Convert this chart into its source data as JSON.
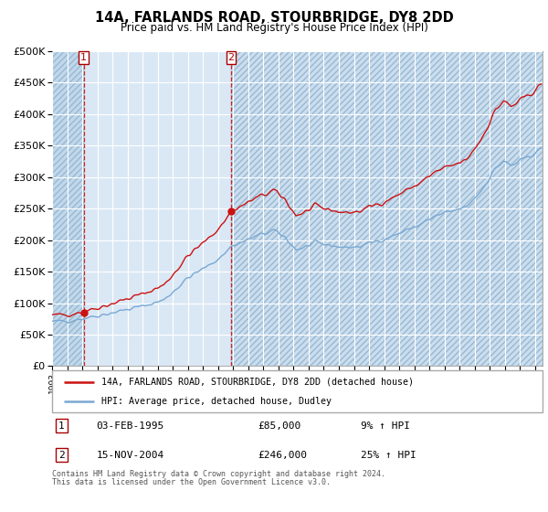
{
  "title": "14A, FARLANDS ROAD, STOURBRIDGE, DY8 2DD",
  "subtitle": "Price paid vs. HM Land Registry's House Price Index (HPI)",
  "sale1_date": "03-FEB-1995",
  "sale1_price": 85000,
  "sale1_label": "9% ↑ HPI",
  "sale2_date": "15-NOV-2004",
  "sale2_price": 246000,
  "sale2_label": "25% ↑ HPI",
  "legend_property": "14A, FARLANDS ROAD, STOURBRIDGE, DY8 2DD (detached house)",
  "legend_hpi": "HPI: Average price, detached house, Dudley",
  "footnote1": "Contains HM Land Registry data © Crown copyright and database right 2024.",
  "footnote2": "This data is licensed under the Open Government Licence v3.0.",
  "ylim": [
    0,
    500000
  ],
  "yticks": [
    0,
    50000,
    100000,
    150000,
    200000,
    250000,
    300000,
    350000,
    400000,
    450000,
    500000
  ],
  "hpi_color": "#7aa8d2",
  "property_color": "#cc1111",
  "vline_color": "#cc1111",
  "bg_color": "#dae8f5",
  "grid_color": "#ffffff",
  "hatch_color": "#c0d8ec"
}
